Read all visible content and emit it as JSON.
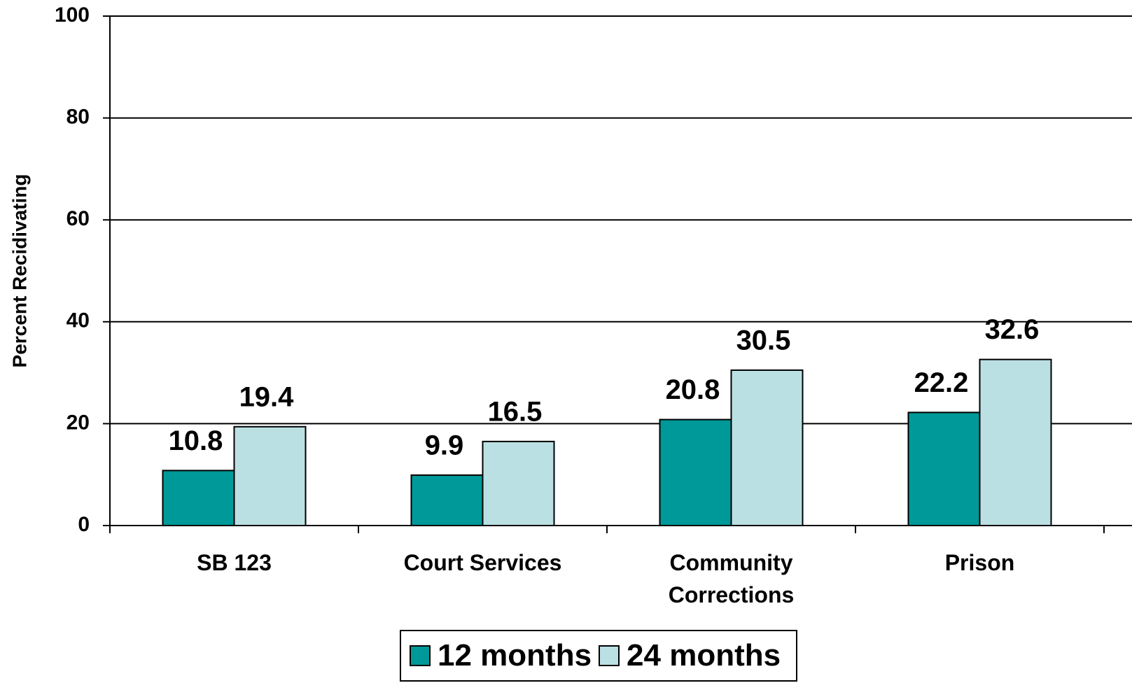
{
  "chart_data": {
    "type": "bar",
    "y_label": "Percent Recidivating",
    "categories": [
      "SB 123",
      "Court Services",
      "Community Corrections",
      "Prison"
    ],
    "series": [
      {
        "name": "12 months",
        "color": "#009999",
        "values": [
          10.8,
          9.9,
          20.8,
          22.2
        ]
      },
      {
        "name": "24 months",
        "color": "#BBE0E3",
        "values": [
          19.4,
          16.5,
          30.5,
          32.6
        ]
      }
    ],
    "ylim": [
      0,
      100
    ],
    "yticks": [
      0,
      20,
      40,
      60,
      80,
      100
    ],
    "grid": true,
    "legend": "bottom"
  }
}
